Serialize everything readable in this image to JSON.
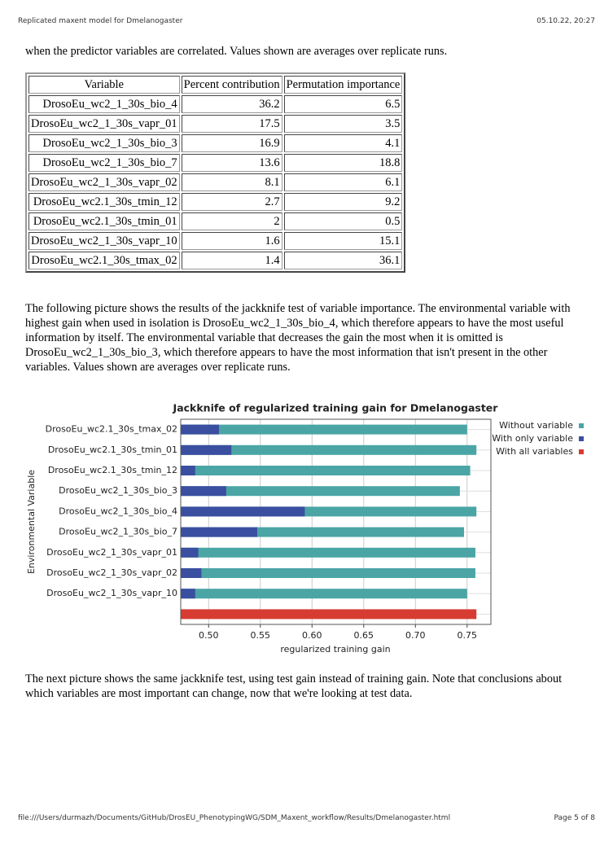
{
  "header": {
    "left": "Replicated maxent model for Dmelanogaster",
    "right": "05.10.22, 20:27"
  },
  "paragraphs": [
    "when the predictor variables are correlated. Values shown are averages over replicate runs.",
    "The following picture shows the results of the jackknife test of variable importance. The environmental variable with highest gain when used in isolation is DrosoEu_wc2_1_30s_bio_4, which therefore appears to have the most useful information by itself. The environmental variable that decreases the gain the most when it is omitted is DrosoEu_wc2_1_30s_bio_3, which therefore appears to have the most information that isn't present in the other variables. Values shown are averages over replicate runs.",
    "The next picture shows the same jackknife test, using test gain instead of training gain. Note that conclusions about which variables are most important can change, now that we're looking at test data."
  ],
  "table": {
    "columns": [
      "Variable",
      "Percent contribution",
      "Permutation importance"
    ],
    "rows": [
      [
        "DrosoEu_wc2_1_30s_bio_4",
        36.2,
        6.5
      ],
      [
        "DrosoEu_wc2_1_30s_vapr_01",
        17.5,
        3.5
      ],
      [
        "DrosoEu_wc2_1_30s_bio_3",
        16.9,
        4.1
      ],
      [
        "DrosoEu_wc2_1_30s_bio_7",
        13.6,
        18.8
      ],
      [
        "DrosoEu_wc2_1_30s_vapr_02",
        8.1,
        6.1
      ],
      [
        "DrosoEu_wc2.1_30s_tmin_12",
        2.7,
        9.2
      ],
      [
        "DrosoEu_wc2.1_30s_tmin_01",
        2,
        0.5
      ],
      [
        "DrosoEu_wc2_1_30s_vapr_10",
        1.6,
        15.1
      ],
      [
        "DrosoEu_wc2.1_30s_tmax_02",
        1.4,
        36.1
      ]
    ]
  },
  "chart_data": {
    "type": "bar",
    "title": "Jackknife of regularized training gain for Dmelanogaster",
    "xlabel": "regularized training gain",
    "ylabel": "Environmental Variable",
    "categories": [
      "DrosoEu_wc2.1_30s_tmax_02",
      "DrosoEu_wc2.1_30s_tmin_01",
      "DrosoEu_wc2.1_30s_tmin_12",
      "DrosoEu_wc2_1_30s_bio_3",
      "DrosoEu_wc2_1_30s_bio_4",
      "DrosoEu_wc2_1_30s_bio_7",
      "DrosoEu_wc2_1_30s_vapr_01",
      "DrosoEu_wc2_1_30s_vapr_02",
      "DrosoEu_wc2_1_30s_vapr_10",
      null
    ],
    "series": [
      {
        "name": "Without variable",
        "color": "#4ba5a5",
        "values": [
          0.75,
          0.759,
          0.753,
          0.743,
          0.759,
          0.747,
          0.758,
          0.758,
          0.75,
          null
        ]
      },
      {
        "name": "With only variable",
        "color": "#3a4fa0",
        "values": [
          0.51,
          0.522,
          0.487,
          0.517,
          0.593,
          0.547,
          0.49,
          0.493,
          0.487,
          null
        ]
      },
      {
        "name": "With all variables",
        "color": "#d63c32",
        "values": [
          null,
          null,
          null,
          null,
          null,
          null,
          null,
          null,
          null,
          0.759
        ]
      }
    ],
    "xlim": [
      0.473,
      0.773
    ],
    "xticks": [
      {
        "value": 0.5,
        "label": "0.50"
      },
      0.55,
      {
        "value": 0.6,
        "label": "0.60"
      },
      0.65,
      {
        "value": 0.7,
        "label": "0.70"
      },
      0.75
    ],
    "grid": true,
    "legend": "right"
  },
  "footer": {
    "left": "file:///Users/durmazh/Documents/GitHub/DrosEU_PhenotypingWG/SDM_Maxent_workflow/Results/Dmelanogaster.html",
    "right": "Page 5 of 8"
  }
}
